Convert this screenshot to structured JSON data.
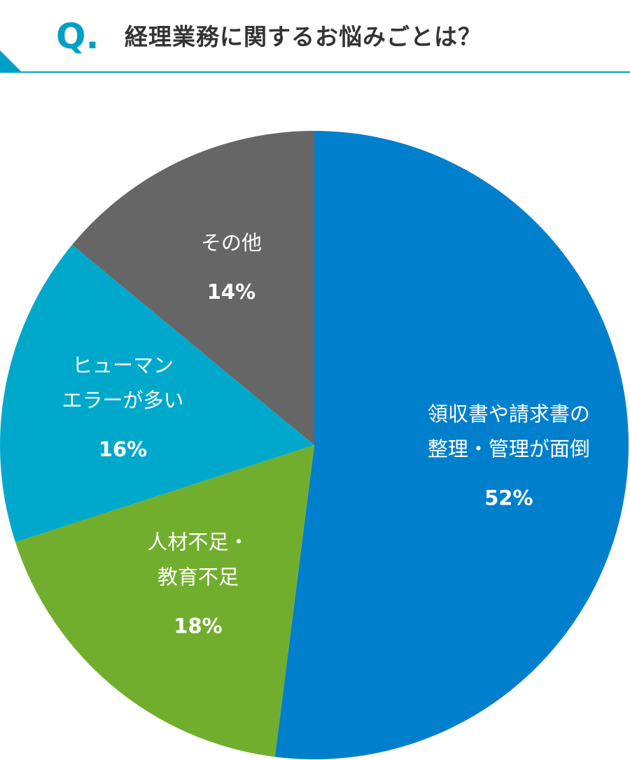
{
  "header": {
    "q_mark": "Q.",
    "question": "経理業務に関するお悩みごとは？"
  },
  "chart_data": {
    "type": "pie",
    "start_angle_deg": 0,
    "direction": "clockwise",
    "slices": [
      {
        "label_lines": [
          "領収書や請求書の",
          "整理・管理が面倒"
        ],
        "value": 52,
        "value_label": "52%",
        "color": "#0080cc"
      },
      {
        "label_lines": [
          "人材不足・",
          "教育不足"
        ],
        "value": 18,
        "value_label": "18%",
        "color": "#72ae2e"
      },
      {
        "label_lines": [
          "ヒューマン",
          "エラーが多い"
        ],
        "value": 16,
        "value_label": "16%",
        "color": "#00a9cc"
      },
      {
        "label_lines": [
          "その他"
        ],
        "value": 14,
        "value_label": "14%",
        "color": "#666666"
      }
    ]
  }
}
